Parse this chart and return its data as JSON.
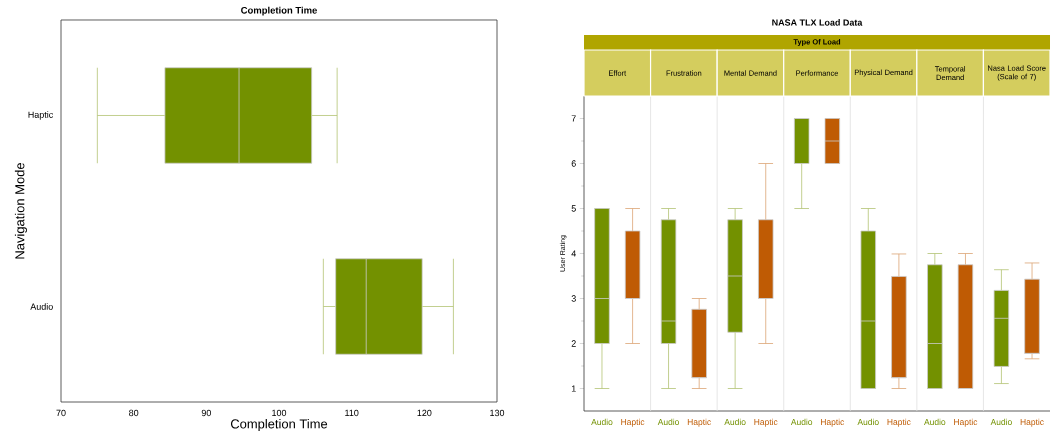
{
  "chart_data": [
    {
      "type": "box",
      "title": "Completion Time",
      "xlabel": "Completion Time",
      "ylabel": "Navigation Mode",
      "orientation": "horizontal",
      "categories": [
        "Haptic",
        "Audio"
      ],
      "color": "#739100",
      "boxes": [
        {
          "low": 75,
          "q1": 84.3,
          "median": 94.5,
          "q3": 104.5,
          "high": 108
        },
        {
          "low": 106.1,
          "q1": 107.8,
          "median": 112,
          "q3": 119.7,
          "high": 124
        }
      ],
      "xlim": [
        70,
        130
      ],
      "xticks": [
        70,
        80,
        90,
        100,
        110,
        120,
        130
      ]
    },
    {
      "type": "box",
      "title": "NASA TLX Load Data",
      "xlabel": "Type Of Load",
      "ylabel": "User Rating",
      "categories": [
        "Effort",
        "Frustration",
        "Mental Demand",
        "Performance",
        "Physical Demand",
        "Temporal Demand",
        "Nasa Load Score (Scale of 7)"
      ],
      "series": [
        {
          "name": "Audio",
          "color": "#739100",
          "boxes": [
            {
              "low": 1,
              "q1": 2,
              "median": 3,
              "q3": 5,
              "high": 5
            },
            {
              "low": 1,
              "q1": 2,
              "median": 2.5,
              "q3": 4.75,
              "high": 5
            },
            {
              "low": 1,
              "q1": 2.25,
              "median": 3.5,
              "q3": 4.75,
              "high": 5
            },
            {
              "low": 5,
              "q1": 6,
              "median": 7,
              "q3": 7,
              "high": 7
            },
            {
              "low": 1,
              "q1": 1,
              "median": 2.5,
              "q3": 4.5,
              "high": 5
            },
            {
              "low": 1,
              "q1": 1,
              "median": 2,
              "q3": 3.75,
              "high": 4
            },
            {
              "low": 1.11,
              "q1": 1.49,
              "median": 2.56,
              "q3": 3.18,
              "high": 3.64
            }
          ]
        },
        {
          "name": "Haptic",
          "color": "#bf5b04",
          "boxes": [
            {
              "low": 2,
              "q1": 3,
              "median": 3,
              "q3": 4.5,
              "high": 5
            },
            {
              "low": 1,
              "q1": 1.24,
              "median": 1.24,
              "q3": 2.76,
              "high": 3
            },
            {
              "low": 2,
              "q1": 3,
              "median": 3,
              "q3": 4.75,
              "high": 6
            },
            {
              "low": 6,
              "q1": 6,
              "median": 6.5,
              "q3": 7,
              "high": 7
            },
            {
              "low": 1,
              "q1": 1.24,
              "median": 1.24,
              "q3": 3.49,
              "high": 3.99
            },
            {
              "low": 1,
              "q1": 1,
              "median": 1,
              "q3": 3.75,
              "high": 4
            },
            {
              "low": 1.66,
              "q1": 1.78,
              "median": 1.78,
              "q3": 3.43,
              "high": 3.79
            }
          ]
        }
      ],
      "ylim": [
        0.5,
        7.5
      ],
      "yticks": [
        1,
        2,
        3,
        4,
        5,
        6,
        7
      ]
    }
  ]
}
